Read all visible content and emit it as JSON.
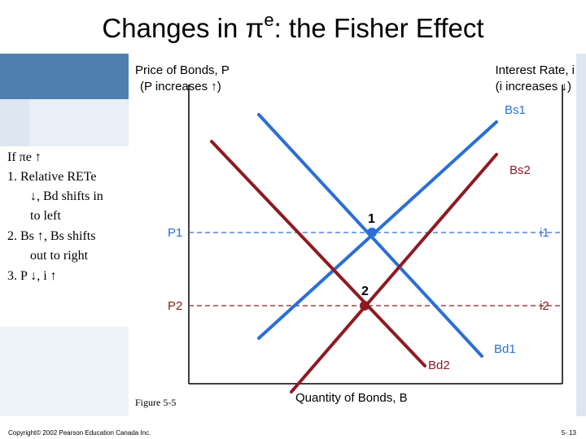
{
  "slide": {
    "title_prefix": "Changes in ",
    "title_pi": "π",
    "title_sup": "e",
    "title_suffix": ": the Fisher Effect",
    "figure_label": "Figure 5-5",
    "copyright": "Copyright© 2002 Pearson Education Canada Inc.",
    "page_number": "5- 13"
  },
  "bullets": {
    "line1": "If πe ↑",
    "line2": "1.  Relative RETe",
    "line3": "↓, Bd shifts in",
    "line4": "to left",
    "line5": "2.  Bs ↑, Bs shifts",
    "line6": "out to right",
    "line7": "3.  P ↓, i ↑"
  },
  "diagram": {
    "y_axis_left_title": "Price of Bonds, P",
    "y_axis_left_sub": "(P increases ↑)",
    "y_axis_right_title": "Interest Rate, i",
    "y_axis_right_sub": "(i increases ↓)",
    "x_axis_title": "Quantity of Bonds, B",
    "p1": "P1",
    "p2": "P2",
    "i1": "i1",
    "i2": "i2",
    "point1": "1",
    "point2": "2",
    "bs1": "Bs1",
    "bs2": "Bs2",
    "bd1": "Bd1",
    "bd2": "Bd2",
    "colors": {
      "blue": "#2b6fd6",
      "red": "#8e1b22",
      "axis": "#000000"
    }
  }
}
